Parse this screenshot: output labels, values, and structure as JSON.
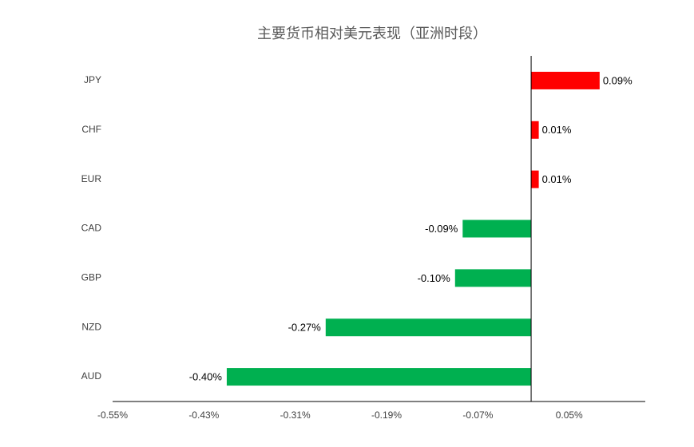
{
  "chart_data": {
    "type": "hbar",
    "title": "主要货币相对美元表现（亚洲时段）",
    "categories": [
      "JPY",
      "CHF",
      "EUR",
      "CAD",
      "GBP",
      "NZD",
      "AUD"
    ],
    "values": [
      0.09,
      0.01,
      0.01,
      -0.09,
      -0.1,
      -0.27,
      -0.4
    ],
    "value_labels": [
      "0.09%",
      "0.01%",
      "0.01%",
      "-0.09%",
      "-0.10%",
      "-0.27%",
      "-0.40%"
    ],
    "positive_color": "#ff0000",
    "negative_color": "#00b050",
    "xlim": [
      -0.55,
      0.15
    ],
    "xticks": [
      {
        "value": -0.55,
        "label": "-0.55%"
      },
      {
        "value": -0.43,
        "label": "-0.43%"
      },
      {
        "value": -0.31,
        "label": "-0.31%"
      },
      {
        "value": -0.19,
        "label": "-0.19%"
      },
      {
        "value": -0.07,
        "label": "-0.07%"
      },
      {
        "value": 0.05,
        "label": "0.05%"
      }
    ],
    "grid": false
  }
}
